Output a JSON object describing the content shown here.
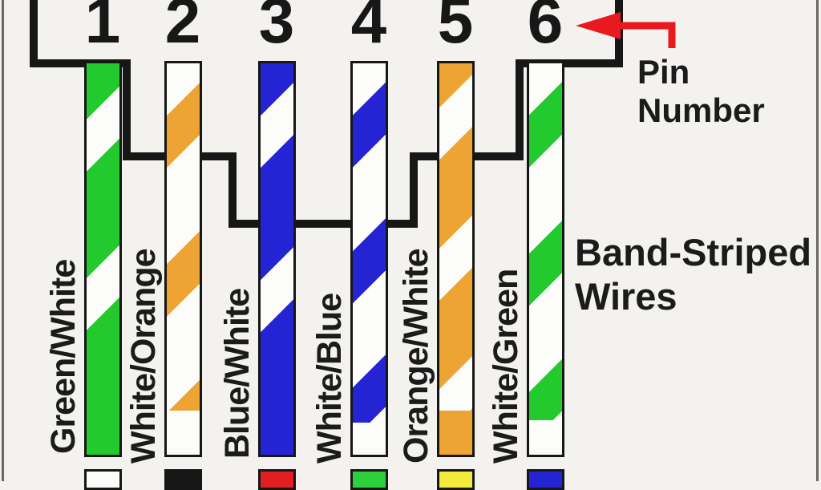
{
  "diagram": {
    "background_color": "#f3f2ef",
    "outline_color": "#171717",
    "frame_color": "#6b665e",
    "pins": [
      {
        "number": "1",
        "wire_label": "Green/White",
        "wire_base_color": "#23ca2e",
        "wire_stripe_color": "#fcfcfa",
        "solid_tail_color": "#fcfcfa"
      },
      {
        "number": "2",
        "wire_label": "White/Orange",
        "wire_base_color": "#fcfcfa",
        "wire_stripe_color": "#eea433",
        "solid_tail_color": "#171717"
      },
      {
        "number": "3",
        "wire_label": "Blue/White",
        "wire_base_color": "#2424d4",
        "wire_stripe_color": "#fcfcfa",
        "solid_tail_color": "#e31e23"
      },
      {
        "number": "4",
        "wire_label": "White/Blue",
        "wire_base_color": "#fcfcfa",
        "wire_stripe_color": "#2424d4",
        "solid_tail_color": "#2bd03a"
      },
      {
        "number": "5",
        "wire_label": "Orange/White",
        "wire_base_color": "#eea433",
        "wire_stripe_color": "#fcfcfa",
        "solid_tail_color": "#f2eb3b"
      },
      {
        "number": "6",
        "wire_label": "White/Green",
        "wire_base_color": "#fcfcfa",
        "wire_stripe_color": "#23ca2e",
        "solid_tail_color": "#2424d4"
      }
    ],
    "callouts": {
      "pin_number_lines": [
        "Pin",
        "Number"
      ],
      "band_striped_lines": [
        "Band-Striped",
        "Wires"
      ],
      "arrow_color": "#e8191f"
    }
  }
}
